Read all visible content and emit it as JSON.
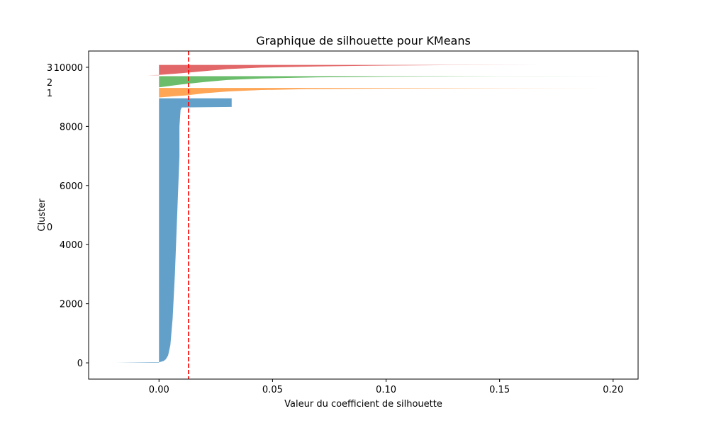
{
  "chart_data": {
    "type": "area",
    "title": "Graphique de silhouette pour KMeans",
    "xlabel": "Valeur du coefficient de silhouette",
    "ylabel": "Cluster",
    "xlim": [
      -0.031,
      0.211
    ],
    "ylim": [
      -550,
      10550
    ],
    "xticks": [
      0.0,
      0.05,
      0.1,
      0.15,
      0.2
    ],
    "xtick_labels": [
      "0.00",
      "0.05",
      "0.10",
      "0.15",
      "0.20"
    ],
    "yticks": [
      0,
      2000,
      4000,
      6000,
      8000,
      10000
    ],
    "ytick_labels": [
      "0",
      "2000",
      "4000",
      "6000",
      "8000",
      "10000"
    ],
    "average_silhouette": 0.013,
    "average_line_color": "#ff0000",
    "clusters": [
      {
        "label": "0",
        "color": "#1f77b4",
        "y_lower": 0,
        "y_upper": 8950,
        "label_y": 4600,
        "profile": [
          [
            0,
            -0.019
          ],
          [
            20,
            0.0
          ],
          [
            60,
            0.002
          ],
          [
            120,
            0.003
          ],
          [
            250,
            0.004
          ],
          [
            600,
            0.005
          ],
          [
            1500,
            0.006
          ],
          [
            3000,
            0.007
          ],
          [
            5000,
            0.008
          ],
          [
            7000,
            0.009
          ],
          [
            8000,
            0.009
          ],
          [
            8560,
            0.0095
          ],
          [
            8640,
            0.01
          ],
          [
            8660,
            0.032
          ],
          [
            8950,
            0.032
          ]
        ]
      },
      {
        "label": "1",
        "color": "#ff7f0e",
        "y_lower": 8980,
        "y_upper": 9300,
        "label_y": 9140,
        "profile": [
          [
            8980,
            0.0
          ],
          [
            9050,
            0.012
          ],
          [
            9120,
            0.02
          ],
          [
            9180,
            0.03
          ],
          [
            9230,
            0.045
          ],
          [
            9260,
            0.065
          ],
          [
            9280,
            0.1
          ],
          [
            9295,
            0.15
          ],
          [
            9300,
            0.196
          ]
        ]
      },
      {
        "label": "2",
        "color": "#2ca02c",
        "y_lower": 9320,
        "y_upper": 9700,
        "label_y": 9500,
        "profile": [
          [
            9320,
            0.0
          ],
          [
            9420,
            0.01
          ],
          [
            9500,
            0.02
          ],
          [
            9570,
            0.03
          ],
          [
            9620,
            0.045
          ],
          [
            9660,
            0.07
          ],
          [
            9680,
            0.1
          ],
          [
            9695,
            0.15
          ],
          [
            9700,
            0.2
          ]
        ]
      },
      {
        "label": "3",
        "color": "#d62728",
        "y_lower": 9730,
        "y_upper": 10080,
        "label_y": 10000,
        "profile": [
          [
            9730,
            -0.005
          ],
          [
            9740,
            0.0
          ],
          [
            9800,
            0.01
          ],
          [
            9870,
            0.02
          ],
          [
            9940,
            0.03
          ],
          [
            9990,
            0.045
          ],
          [
            10030,
            0.07
          ],
          [
            10060,
            0.1
          ],
          [
            10075,
            0.13
          ],
          [
            10080,
            0.17
          ]
        ]
      }
    ]
  }
}
